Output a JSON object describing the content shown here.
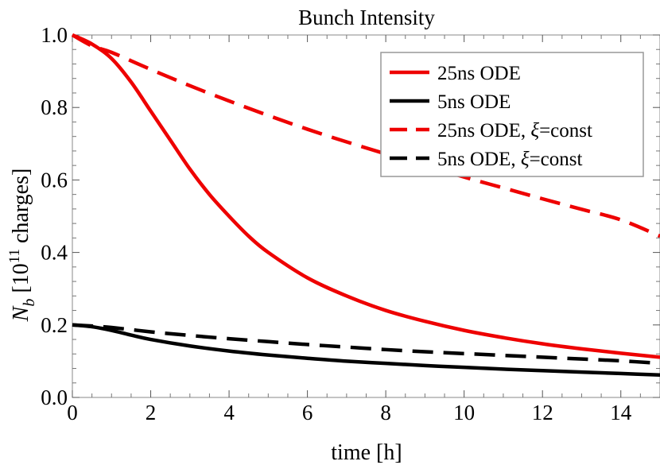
{
  "chart_data": {
    "type": "line",
    "title": "Bunch Intensity",
    "xlabel": "time [h]",
    "ylabel_parts": {
      "symbol": "N",
      "subscript": "b",
      "prefix": " [10",
      "exponent": "11",
      "suffix": " charges]"
    },
    "xlim": [
      0,
      15
    ],
    "ylim": [
      0,
      1.0
    ],
    "x_ticks": [
      0,
      2,
      4,
      6,
      8,
      10,
      12,
      14
    ],
    "x_tick_labels": [
      "0",
      "2",
      "4",
      "6",
      "8",
      "10",
      "12",
      "14"
    ],
    "y_ticks": [
      0.0,
      0.2,
      0.4,
      0.6,
      0.8,
      1.0
    ],
    "y_tick_labels": [
      "0.0",
      "0.2",
      "0.4",
      "0.6",
      "0.8",
      "1.0"
    ],
    "grid": false,
    "legend_position": "top-right",
    "series": [
      {
        "name": "25ns ODE",
        "color": "#ee0000",
        "dash": "solid",
        "x": [
          0,
          0.5,
          1,
          1.5,
          2,
          2.5,
          3,
          3.5,
          4,
          4.5,
          5,
          6,
          7,
          8,
          9,
          10,
          11,
          12,
          13,
          14,
          15
        ],
        "y": [
          1.0,
          0.975,
          0.935,
          0.87,
          0.79,
          0.71,
          0.63,
          0.56,
          0.5,
          0.445,
          0.4,
          0.33,
          0.28,
          0.24,
          0.21,
          0.185,
          0.165,
          0.148,
          0.134,
          0.122,
          0.111
        ]
      },
      {
        "name": "5ns ODE",
        "color": "#000000",
        "dash": "solid",
        "x": [
          0,
          0.5,
          1,
          1.5,
          2,
          3,
          4,
          5,
          6,
          7,
          8,
          9,
          10,
          11,
          12,
          13,
          14,
          15
        ],
        "y": [
          0.2,
          0.195,
          0.185,
          0.172,
          0.16,
          0.142,
          0.128,
          0.117,
          0.108,
          0.1,
          0.094,
          0.088,
          0.083,
          0.078,
          0.074,
          0.07,
          0.066,
          0.062
        ]
      },
      {
        "name": "25ns ODE, ξ=const",
        "color": "#ee0000",
        "dash": "dashed",
        "x": [
          0,
          0.5,
          1,
          2,
          3,
          4,
          5,
          6,
          7,
          8,
          9,
          10,
          11,
          12,
          13,
          14,
          15
        ],
        "y": [
          1.0,
          0.97,
          0.952,
          0.905,
          0.86,
          0.818,
          0.778,
          0.74,
          0.705,
          0.672,
          0.64,
          0.608,
          0.578,
          0.548,
          0.519,
          0.49,
          0.445
        ]
      },
      {
        "name": "5ns ODE, ξ=const",
        "color": "#000000",
        "dash": "dashed",
        "x": [
          0,
          0.5,
          1,
          2,
          3,
          4,
          5,
          6,
          7,
          8,
          9,
          10,
          11,
          12,
          13,
          14,
          15
        ],
        "y": [
          0.2,
          0.197,
          0.193,
          0.181,
          0.171,
          0.162,
          0.154,
          0.146,
          0.139,
          0.132,
          0.126,
          0.121,
          0.116,
          0.111,
          0.106,
          0.101,
          0.094
        ]
      }
    ]
  }
}
